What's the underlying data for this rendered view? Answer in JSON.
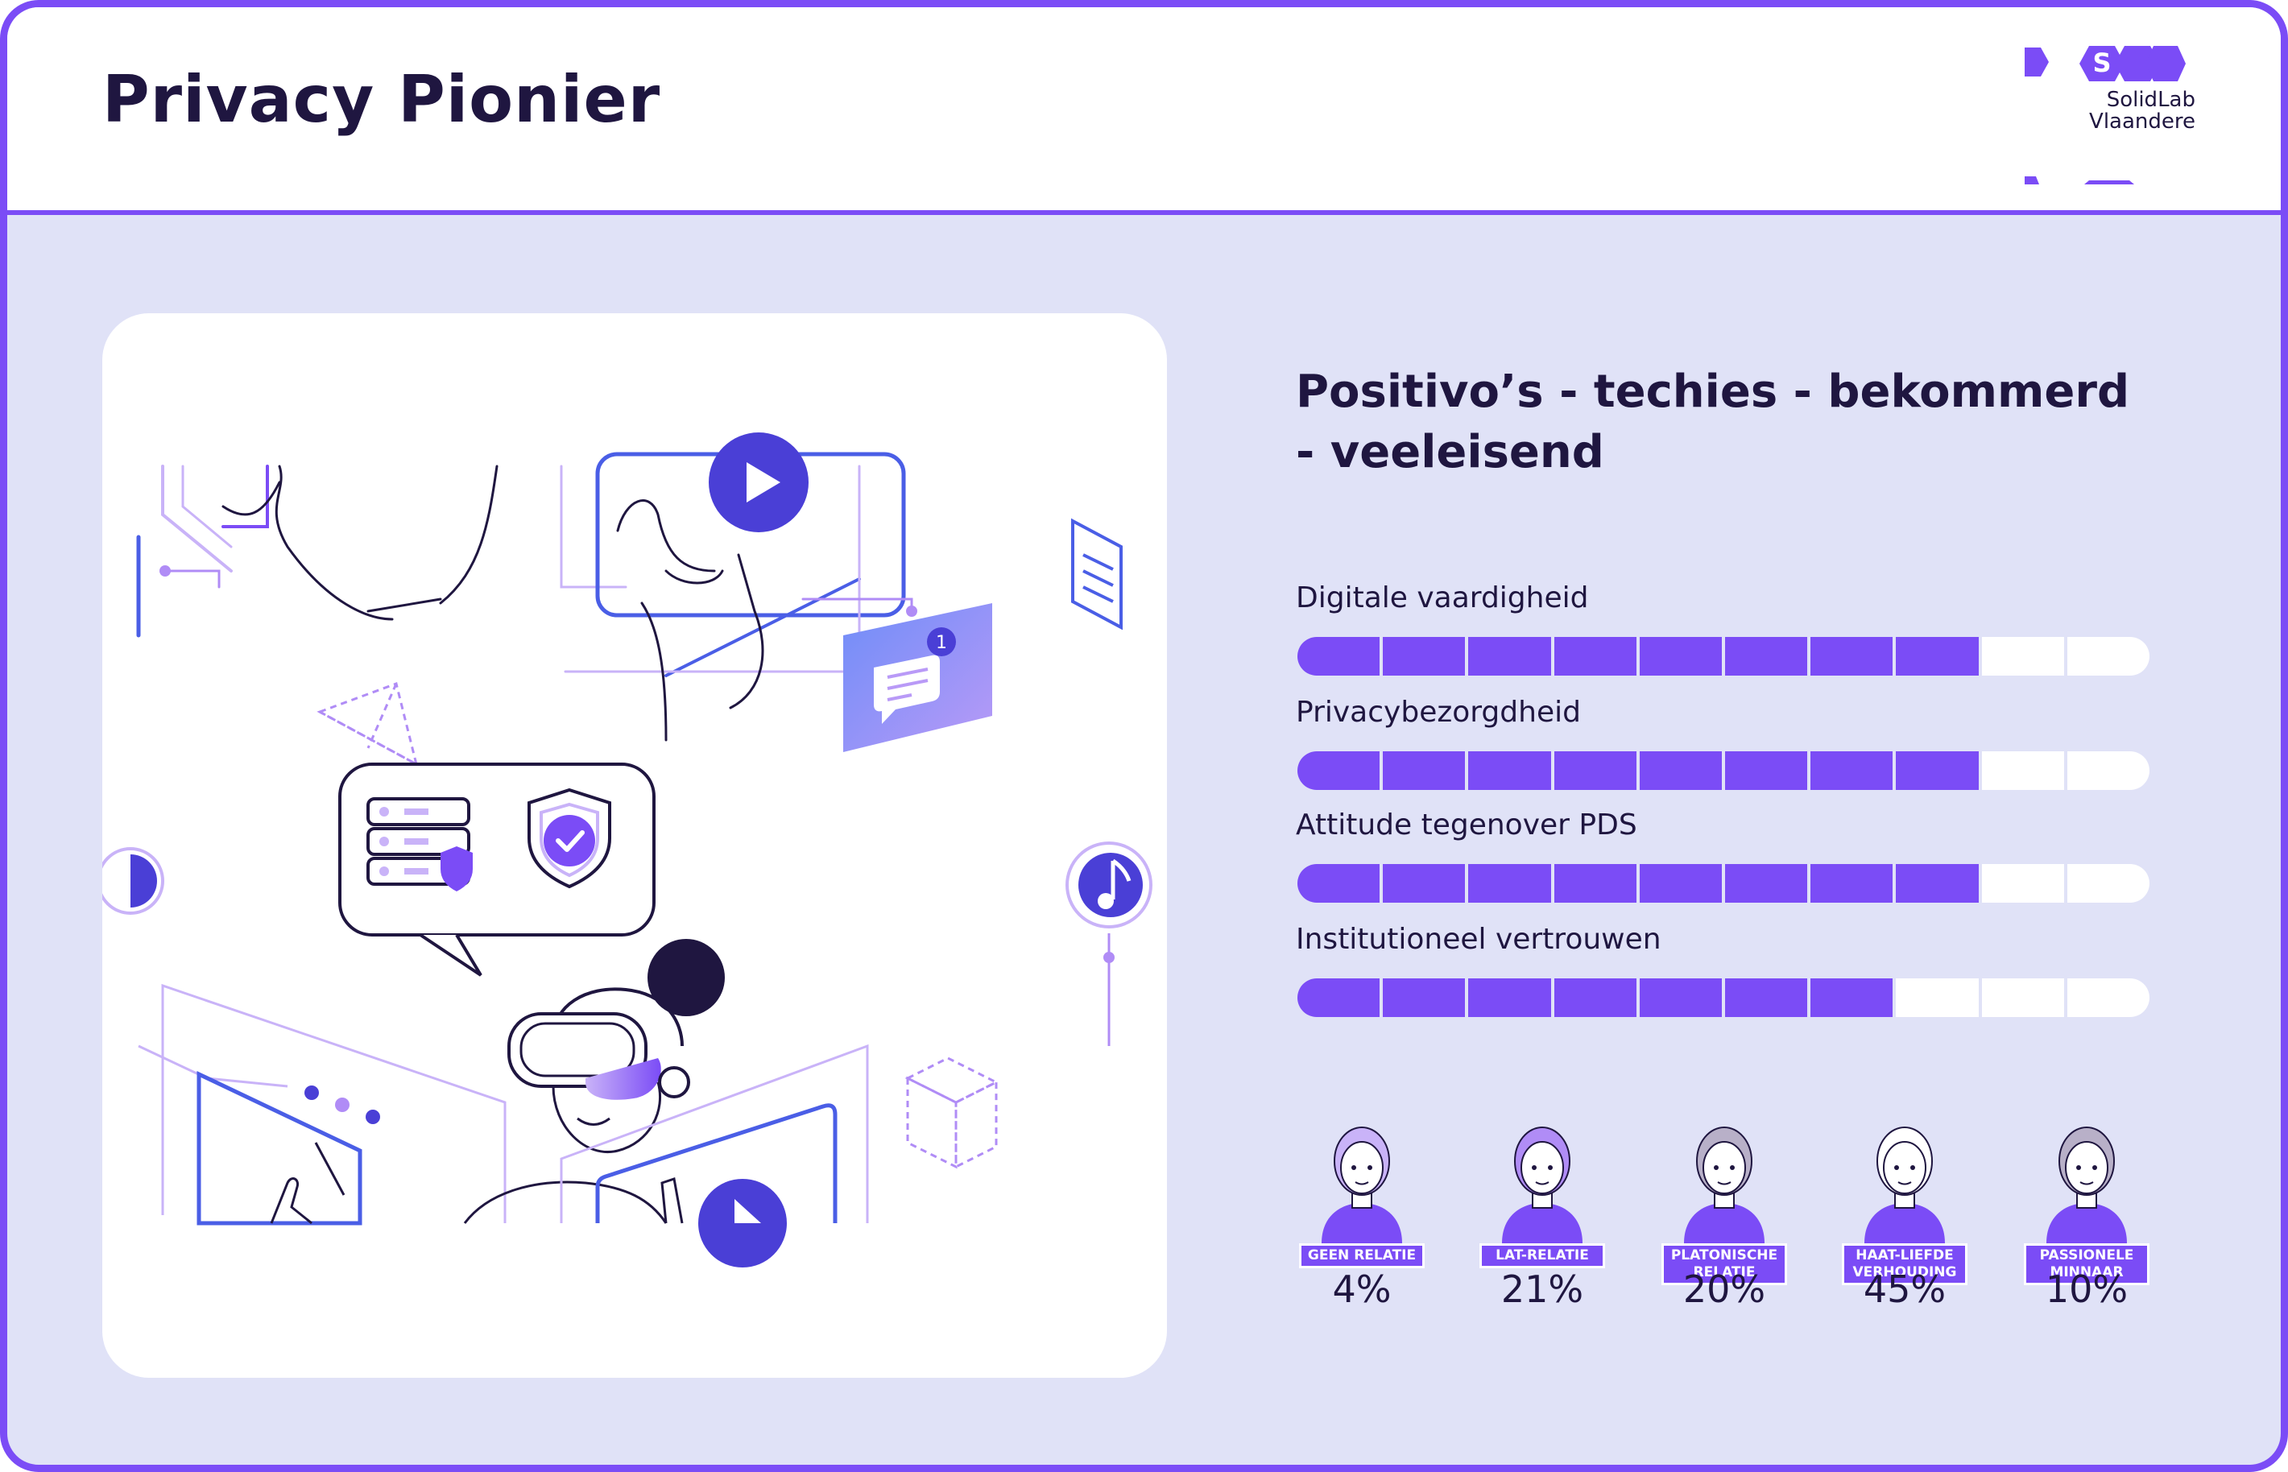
{
  "header": {
    "title": "Privacy Pionier",
    "logo_text": [
      "SolidLab",
      "Vlaandere"
    ]
  },
  "profile": {
    "title": "Positivo’s - techies - bekommerd - veeleisend"
  },
  "metrics": [
    {
      "label": "Digitale vaardigheid",
      "filled": 8,
      "total": 10
    },
    {
      "label": "Privacybezorgdheid",
      "filled": 8,
      "total": 10
    },
    {
      "label": "Attitude tegenover PDS",
      "filled": 8,
      "total": 10
    },
    {
      "label": "Institutioneel vertrouwen",
      "filled": 7,
      "total": 10
    }
  ],
  "relations": [
    {
      "label": "GEEN RELATIE",
      "percent": "4%"
    },
    {
      "label": "LAT-RELATIE",
      "percent": "21%"
    },
    {
      "label": "PLATONISCHE RELATIE",
      "percent": "20%"
    },
    {
      "label": "HAAT-LIEFDE VERHOUDING",
      "percent": "45%"
    },
    {
      "label": "PASSIONELE MINNAAR",
      "percent": "10%"
    }
  ],
  "colors": {
    "accent": "#7b4cf6",
    "background": "#e0e2f7",
    "text": "#1f1640"
  },
  "icons": [
    "solidlab-logo",
    "notification-icon",
    "shield-check-icon",
    "music-icon",
    "play-icon"
  ]
}
